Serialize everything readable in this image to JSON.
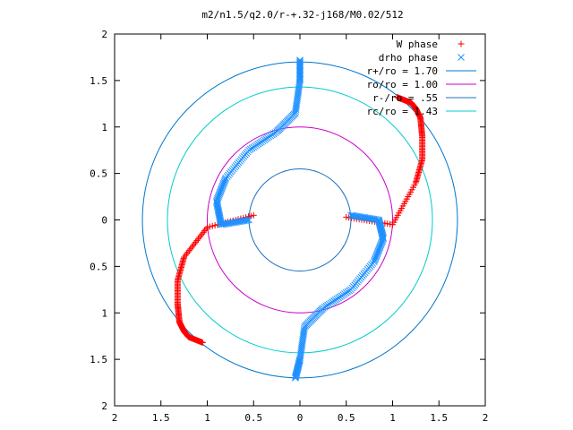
{
  "chart_data": {
    "type": "scatter",
    "title": "m2/n1.5/q2.0/r-+.32-j168/M0.02/512",
    "xlabel": "",
    "ylabel": "",
    "xlim": [
      -2,
      2
    ],
    "ylim": [
      -2,
      2
    ],
    "x_ticks": [
      {
        "value": -2,
        "label": "2"
      },
      {
        "value": -1.5,
        "label": "1.5"
      },
      {
        "value": -1,
        "label": "1"
      },
      {
        "value": -0.5,
        "label": "0.5"
      },
      {
        "value": 0,
        "label": "0"
      },
      {
        "value": 0.5,
        "label": "0.5"
      },
      {
        "value": 1,
        "label": "1"
      },
      {
        "value": 1.5,
        "label": "1.5"
      },
      {
        "value": 2,
        "label": "2"
      }
    ],
    "y_ticks": [
      {
        "value": -2,
        "label": "2"
      },
      {
        "value": -1.5,
        "label": "1.5"
      },
      {
        "value": -1,
        "label": "1"
      },
      {
        "value": -0.5,
        "label": "0.5"
      },
      {
        "value": 0,
        "label": "0"
      },
      {
        "value": 0.5,
        "label": "0.5"
      },
      {
        "value": 1,
        "label": "1"
      },
      {
        "value": 1.5,
        "label": "1.5"
      },
      {
        "value": 2,
        "label": "2"
      }
    ],
    "grid": false,
    "legend_position": "top-right",
    "series": [
      {
        "name": "W phase",
        "marker": "plus",
        "color": "#ff0000",
        "arms": [
          [
            [
              -0.5,
              0.05
            ],
            [
              -1.0,
              -0.08
            ],
            [
              -1.25,
              -0.4
            ],
            [
              -1.32,
              -0.65
            ],
            [
              -1.32,
              -0.9
            ],
            [
              -1.3,
              -1.1
            ],
            [
              -1.25,
              -1.2
            ],
            [
              -1.2,
              -1.26
            ],
            [
              -1.05,
              -1.32
            ]
          ],
          [
            [
              0.5,
              0.03
            ],
            [
              1.0,
              -0.05
            ],
            [
              1.25,
              0.4
            ],
            [
              1.32,
              0.65
            ],
            [
              1.32,
              0.9
            ],
            [
              1.3,
              1.1
            ],
            [
              1.25,
              1.2
            ],
            [
              1.2,
              1.26
            ],
            [
              1.05,
              1.32
            ]
          ]
        ]
      },
      {
        "name": "drho phase",
        "marker": "cross",
        "color": "#1e90ff",
        "arms": [
          [
            [
              -0.55,
              0.0
            ],
            [
              -0.85,
              -0.05
            ],
            [
              -0.9,
              0.2
            ],
            [
              -0.8,
              0.45
            ],
            [
              -0.55,
              0.75
            ],
            [
              -0.25,
              0.95
            ],
            [
              -0.05,
              1.15
            ],
            [
              0.0,
              1.5
            ],
            [
              0.0,
              1.72
            ]
          ],
          [
            [
              0.55,
              0.05
            ],
            [
              0.85,
              0.0
            ],
            [
              0.9,
              -0.2
            ],
            [
              0.8,
              -0.45
            ],
            [
              0.55,
              -0.75
            ],
            [
              0.25,
              -0.95
            ],
            [
              0.05,
              -1.15
            ],
            [
              0.0,
              -1.5
            ],
            [
              -0.05,
              -1.7
            ]
          ]
        ]
      }
    ],
    "circles": [
      {
        "name": "r+/ro = 1.70",
        "radius": 1.7,
        "color": "#0077cc"
      },
      {
        "name": "ro/ro = 1.00",
        "radius": 1.0,
        "color": "#cc00cc"
      },
      {
        "name": "r-/ro = .55",
        "radius": 0.55,
        "color": "#1f6fbf"
      },
      {
        "name": "rc/ro = 1.43",
        "radius": 1.43,
        "color": "#00cccc"
      }
    ]
  }
}
